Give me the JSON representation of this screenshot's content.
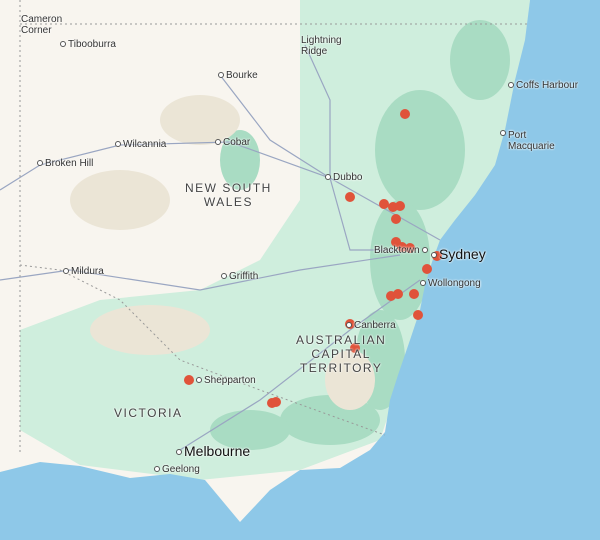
{
  "colors": {
    "ocean": "#8ec8e8",
    "land": "#f8f5ef",
    "forest": "#b9e3cf",
    "marker": "#e0533a"
  },
  "places": {
    "cameron_corner": "Cameron\nCorner",
    "tibooburra": "Tibooburra",
    "lightning_ridge": "Lightning\nRidge",
    "bourke": "Bourke",
    "coffs_harbour": "Coffs Harbour",
    "port_macquarie": "Port\nMacquarie",
    "wilcannia": "Wilcannia",
    "cobar": "Cobar",
    "broken_hill": "Broken Hill",
    "dubbo": "Dubbo",
    "blacktown": "Blacktown",
    "sydney": "Sydney",
    "mildura": "Mildura",
    "griffith": "Griffith",
    "wollongong": "Wollongong",
    "canberra": "Canberra",
    "shepparton": "Shepparton",
    "melbourne": "Melbourne",
    "geelong": "Geelong"
  },
  "regions": {
    "nsw": "NEW SOUTH\nWALES",
    "act": "AUSTRALIAN\nCAPITAL\nTERRITORY",
    "vic": "VICTORIA"
  },
  "marker_count": 20
}
